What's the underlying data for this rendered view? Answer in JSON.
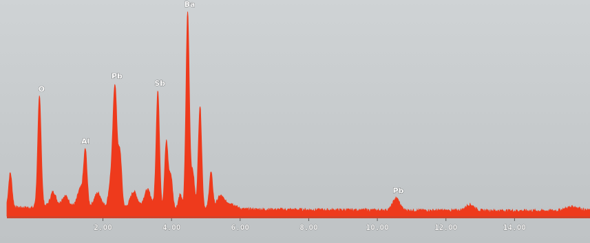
{
  "chart_data": {
    "type": "area",
    "title": "",
    "xlabel": "",
    "ylabel": "",
    "xlim": [
      -0.8,
      16.2
    ],
    "ylim": [
      0,
      100
    ],
    "x_ticks": [
      {
        "value": 2,
        "label": "2.00"
      },
      {
        "value": 4,
        "label": "4.00"
      },
      {
        "value": 6,
        "label": "6.00"
      },
      {
        "value": 8,
        "label": "8.00"
      },
      {
        "value": 10,
        "label": "10.00"
      },
      {
        "value": 12,
        "label": "12.00"
      },
      {
        "value": 14,
        "label": "14.00"
      }
    ],
    "grid": false,
    "background_color": "#c9cdcf",
    "spectrum_color": "#ee3a1c",
    "baseline": 2.5,
    "peaks": [
      {
        "x": -0.7,
        "y": 17,
        "w": 0.05
      },
      {
        "x": 0.15,
        "y": 54,
        "w": 0.05
      },
      {
        "x": 0.55,
        "y": 7,
        "w": 0.08
      },
      {
        "x": 0.9,
        "y": 5,
        "w": 0.1
      },
      {
        "x": 1.35,
        "y": 9,
        "w": 0.09
      },
      {
        "x": 1.49,
        "y": 26,
        "w": 0.05
      },
      {
        "x": 1.85,
        "y": 7,
        "w": 0.1
      },
      {
        "x": 2.22,
        "y": 11,
        "w": 0.06
      },
      {
        "x": 2.35,
        "y": 60,
        "w": 0.06
      },
      {
        "x": 2.5,
        "y": 26,
        "w": 0.05
      },
      {
        "x": 2.9,
        "y": 8,
        "w": 0.1
      },
      {
        "x": 3.3,
        "y": 9,
        "w": 0.1
      },
      {
        "x": 3.6,
        "y": 58,
        "w": 0.05
      },
      {
        "x": 3.85,
        "y": 33,
        "w": 0.05
      },
      {
        "x": 3.98,
        "y": 16,
        "w": 0.05
      },
      {
        "x": 4.25,
        "y": 7,
        "w": 0.05
      },
      {
        "x": 4.47,
        "y": 97,
        "w": 0.05
      },
      {
        "x": 4.62,
        "y": 18,
        "w": 0.05
      },
      {
        "x": 4.83,
        "y": 51,
        "w": 0.05
      },
      {
        "x": 5.15,
        "y": 18,
        "w": 0.05
      },
      {
        "x": 5.42,
        "y": 6,
        "w": 0.1
      },
      {
        "x": 5.7,
        "y": 3,
        "w": 0.15
      },
      {
        "x": 10.55,
        "y": 6,
        "w": 0.1
      },
      {
        "x": 12.7,
        "y": 3,
        "w": 0.12
      },
      {
        "x": 15.7,
        "y": 2,
        "w": 0.2
      }
    ],
    "annotations": [
      {
        "label": "O",
        "x": 0.15
      },
      {
        "label": "Al",
        "x": 1.49
      },
      {
        "label": "Pb",
        "x": 2.35
      },
      {
        "label": "Sb",
        "x": 3.6
      },
      {
        "label": "Ba",
        "x": 4.47
      },
      {
        "label": "Pb",
        "x": 10.55
      }
    ]
  }
}
